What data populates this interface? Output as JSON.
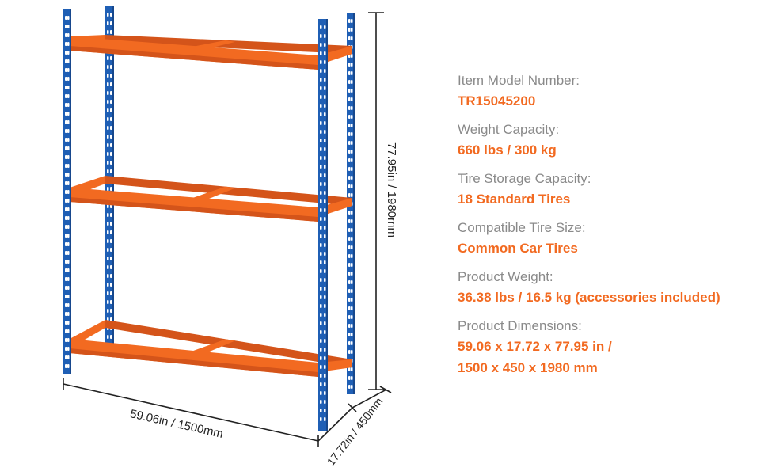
{
  "colors": {
    "upright": "#1f5fb5",
    "upright_dark": "#17488d",
    "beam": "#f26a21",
    "beam_dark": "#d4541a",
    "label": "#8a8a8a",
    "value": "#f26a21",
    "dimension_line": "#222222"
  },
  "dimensions": {
    "height": "77.95in / 1980mm",
    "width": "59.06in / 1500mm",
    "depth": "17.72in / 450mm"
  },
  "specs": [
    {
      "label": "Item Model Number:",
      "values": [
        "TR15045200"
      ]
    },
    {
      "label": "Weight Capacity:",
      "values": [
        "660 lbs / 300 kg"
      ]
    },
    {
      "label": "Tire Storage Capacity:",
      "values": [
        "18 Standard Tires"
      ]
    },
    {
      "label": "Compatible Tire Size:",
      "values": [
        "Common Car Tires"
      ]
    },
    {
      "label": "Product Weight:",
      "values": [
        "36.38 lbs / 16.5 kg  (accessories included)"
      ]
    },
    {
      "label": "Product Dimensions:",
      "values": [
        "59.06 x 17.72 x 77.95 in /",
        "1500 x 450 x 1980 mm"
      ]
    }
  ]
}
